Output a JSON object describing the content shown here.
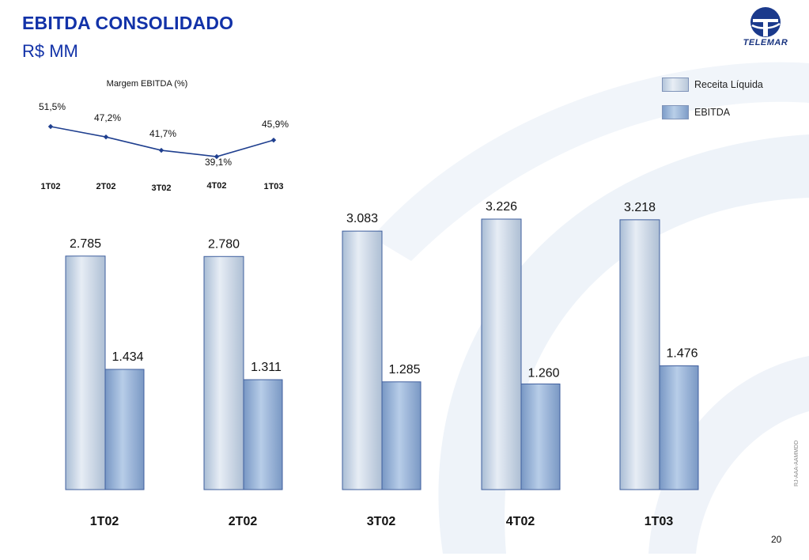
{
  "header": {
    "title": "EBITDA CONSOLIDADO",
    "subtitle": "R$ MM",
    "logo_text": "TELEMAR"
  },
  "legend": {
    "items": [
      {
        "label": "Receita Líquida"
      },
      {
        "label": "EBITDA"
      }
    ]
  },
  "footer": {
    "code": "RJ-AAA-AAMMDD",
    "page": "20"
  },
  "colors": {
    "title": "#1232a8",
    "margin_line": "#1f3f8f",
    "revenue_bar": "#c9d6e6",
    "ebitda_bar": "#9cb6da"
  },
  "chart_data": [
    {
      "type": "line",
      "title": "Margem EBITDA  (%)",
      "categories": [
        "1T02",
        "2T02",
        "3T02",
        "4T02",
        "1T03"
      ],
      "values": [
        51.5,
        47.2,
        41.7,
        39.1,
        45.9
      ],
      "value_labels": [
        "51,5%",
        "47,2%",
        "41,7%",
        "39,1%",
        "45,9%"
      ],
      "grid": false
    },
    {
      "type": "bar",
      "title": "",
      "categories": [
        "1T02",
        "2T02",
        "3T02",
        "4T02",
        "1T03"
      ],
      "series": [
        {
          "name": "Receita Líquida",
          "values": [
            2785,
            2780,
            3083,
            3226,
            3218
          ],
          "labels": [
            "2.785",
            "2.780",
            "3.083",
            "3.226",
            "3.218"
          ]
        },
        {
          "name": "EBITDA",
          "values": [
            1434,
            1311,
            1285,
            1260,
            1476
          ],
          "labels": [
            "1.434",
            "1.311",
            "1.285",
            "1.260",
            "1.476"
          ]
        }
      ],
      "ylim": [
        0,
        3226
      ],
      "grid": false,
      "legend": "top-right"
    }
  ]
}
